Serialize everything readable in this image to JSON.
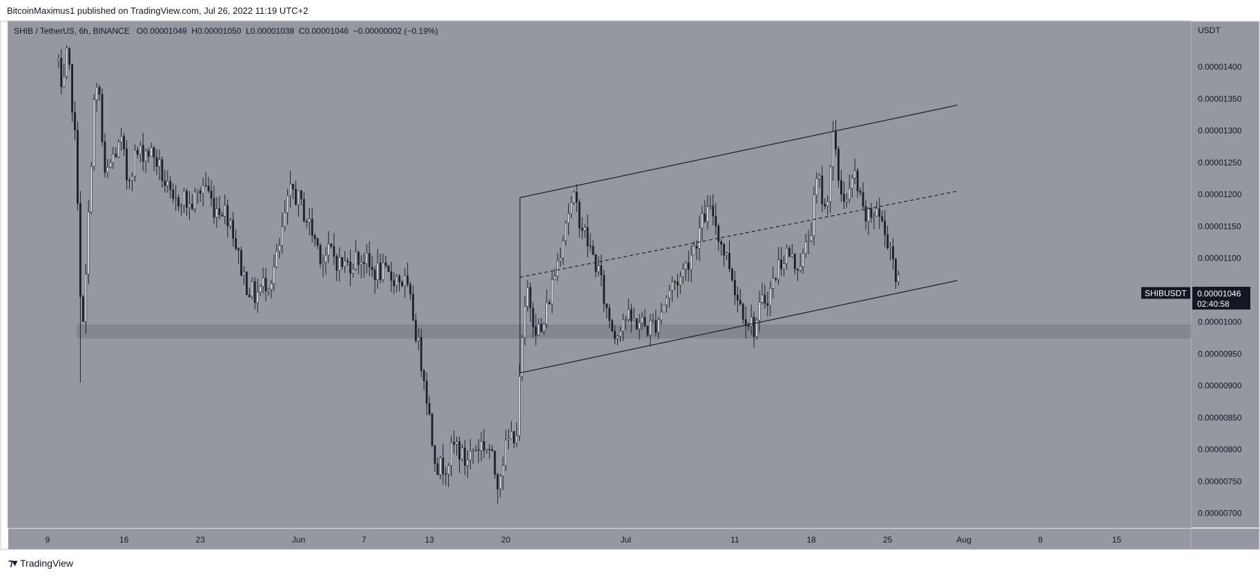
{
  "header": {
    "publisher": "BitcoinMaximus1 published on TradingView.com, Jul 26, 2022 11:19 UTC+2"
  },
  "legend": {
    "symbol": "SHIB / TetherUS, 6h, BINANCE",
    "o_label": "O",
    "o_value": "0.00001049",
    "h_label": "H",
    "h_value": "0.00001050",
    "l_label": "L",
    "l_value": "0.00001038",
    "c_label": "C",
    "c_value": "0.00001046",
    "change": "−0.00000002 (−0.19%)"
  },
  "price_tag": {
    "symbol": "SHIBUSDT",
    "price": "0.00001046",
    "countdown": "02:40:58"
  },
  "brand": {
    "name": "TradingView"
  },
  "colors": {
    "background": "#9598a1",
    "candle": "#1c1f26",
    "line": "#1c1f26",
    "support_zone": "#7b7e86",
    "tag": "#131722"
  },
  "chart_data": {
    "type": "candlestick",
    "currency_label": "USDT",
    "y_ticks": [
      "0.00001400",
      "0.00001350",
      "0.00001300",
      "0.00001250",
      "0.00001200",
      "0.00001150",
      "0.00001100",
      "0.00001050",
      "0.00001000",
      "0.00000950",
      "0.00000900",
      "0.00000850",
      "0.00000800",
      "0.00000750",
      "0.00000700"
    ],
    "y_tick_values": [
      14.0,
      13.5,
      13.0,
      12.5,
      12.0,
      11.5,
      11.0,
      10.5,
      10.0,
      9.5,
      9.0,
      8.5,
      8.0,
      7.5,
      7.0
    ],
    "y_unit_scale": "1e-6",
    "x_ticks": [
      {
        "label": "9",
        "day": 0
      },
      {
        "label": "16",
        "day": 7
      },
      {
        "label": "23",
        "day": 14
      },
      {
        "label": "Jun",
        "day": 23
      },
      {
        "label": "7",
        "day": 29
      },
      {
        "label": "13",
        "day": 35
      },
      {
        "label": "20",
        "day": 42
      },
      {
        "label": "Jul",
        "day": 53
      },
      {
        "label": "11",
        "day": 63
      },
      {
        "label": "18",
        "day": 70
      },
      {
        "label": "25",
        "day": 77
      },
      {
        "label": "Aug",
        "day": 84
      },
      {
        "label": "8",
        "day": 91
      },
      {
        "label": "15",
        "day": 98
      }
    ],
    "price_path_day_close": [
      [
        1.0,
        14.1
      ],
      [
        1.3,
        13.4
      ],
      [
        1.8,
        14.2
      ],
      [
        2.4,
        13.2
      ],
      [
        2.9,
        11.5
      ],
      [
        3.1,
        9.5
      ],
      [
        3.4,
        10.3
      ],
      [
        3.8,
        11.8
      ],
      [
        4.2,
        13.4
      ],
      [
        4.7,
        13.7
      ],
      [
        5.2,
        12.2
      ],
      [
        6.0,
        12.6
      ],
      [
        6.8,
        12.8
      ],
      [
        7.3,
        12.2
      ],
      [
        8.0,
        12.6
      ],
      [
        9.0,
        12.7
      ],
      [
        9.8,
        12.6
      ],
      [
        10.5,
        12.3
      ],
      [
        11.5,
        11.8
      ],
      [
        12.3,
        12.0
      ],
      [
        13.0,
        11.8
      ],
      [
        13.8,
        12.0
      ],
      [
        14.4,
        12.2
      ],
      [
        15.2,
        11.8
      ],
      [
        16.0,
        11.8
      ],
      [
        16.8,
        11.6
      ],
      [
        17.5,
        11.0
      ],
      [
        18.2,
        10.6
      ],
      [
        19.0,
        10.4
      ],
      [
        19.8,
        10.6
      ],
      [
        20.5,
        10.7
      ],
      [
        21.2,
        11.1
      ],
      [
        21.8,
        11.7
      ],
      [
        22.4,
        12.1
      ],
      [
        23.0,
        11.9
      ],
      [
        23.8,
        11.6
      ],
      [
        24.5,
        11.3
      ],
      [
        25.2,
        11.0
      ],
      [
        26.0,
        11.1
      ],
      [
        26.8,
        10.9
      ],
      [
        27.5,
        10.9
      ],
      [
        28.2,
        11.0
      ],
      [
        29.0,
        11.0
      ],
      [
        29.6,
        10.8
      ],
      [
        30.4,
        10.8
      ],
      [
        31.2,
        10.7
      ],
      [
        32.0,
        10.7
      ],
      [
        32.8,
        10.6
      ],
      [
        33.5,
        10.1
      ],
      [
        34.0,
        9.6
      ],
      [
        34.6,
        9.1
      ],
      [
        35.2,
        8.2
      ],
      [
        35.8,
        7.7
      ],
      [
        36.6,
        7.8
      ],
      [
        37.4,
        8.1
      ],
      [
        38.2,
        7.8
      ],
      [
        39.0,
        8.0
      ],
      [
        39.8,
        8.1
      ],
      [
        40.5,
        8.0
      ],
      [
        41.2,
        7.5
      ],
      [
        41.8,
        7.9
      ],
      [
        42.4,
        8.2
      ],
      [
        43.0,
        8.3
      ],
      [
        43.5,
        9.7
      ],
      [
        44.0,
        10.5
      ],
      [
        44.6,
        10.0
      ],
      [
        45.3,
        9.8
      ],
      [
        46.0,
        10.4
      ],
      [
        46.8,
        11.0
      ],
      [
        47.6,
        11.7
      ],
      [
        48.3,
        11.9
      ],
      [
        49.0,
        11.5
      ],
      [
        49.8,
        11.1
      ],
      [
        50.5,
        10.8
      ],
      [
        51.2,
        10.2
      ],
      [
        52.0,
        9.8
      ],
      [
        52.8,
        10.1
      ],
      [
        53.5,
        10.0
      ],
      [
        54.3,
        10.0
      ],
      [
        55.0,
        9.9
      ],
      [
        55.8,
        10.0
      ],
      [
        56.5,
        10.3
      ],
      [
        57.3,
        10.6
      ],
      [
        58.0,
        10.7
      ],
      [
        58.8,
        11.0
      ],
      [
        59.5,
        11.3
      ],
      [
        60.3,
        11.7
      ],
      [
        61.0,
        11.7
      ],
      [
        61.8,
        11.2
      ],
      [
        62.5,
        10.9
      ],
      [
        63.2,
        10.4
      ],
      [
        64.0,
        10.1
      ],
      [
        64.8,
        9.9
      ],
      [
        65.5,
        10.3
      ],
      [
        66.3,
        10.5
      ],
      [
        67.0,
        10.9
      ],
      [
        67.8,
        11.1
      ],
      [
        68.5,
        10.9
      ],
      [
        69.3,
        11.0
      ],
      [
        70.0,
        11.5
      ],
      [
        70.6,
        12.3
      ],
      [
        71.3,
        11.7
      ],
      [
        72.0,
        12.9
      ],
      [
        72.6,
        12.1
      ],
      [
        73.3,
        11.9
      ],
      [
        74.0,
        12.3
      ],
      [
        74.7,
        11.7
      ],
      [
        75.3,
        11.6
      ],
      [
        76.0,
        11.8
      ],
      [
        76.7,
        11.4
      ],
      [
        77.3,
        11.2
      ],
      [
        77.8,
        10.7
      ],
      [
        78.2,
        10.46
      ]
    ],
    "channel_upper": [
      [
        43.3,
        11.95
      ],
      [
        83.4,
        13.4
      ]
    ],
    "channel_mid": [
      [
        43.3,
        10.7
      ],
      [
        83.4,
        12.05
      ]
    ],
    "channel_lower": [
      [
        43.3,
        9.2
      ],
      [
        83.4,
        10.65
      ]
    ],
    "vertical_line": {
      "day": 43.3,
      "from": 9.2,
      "to": 11.95
    },
    "support_zone": [
      9.75,
      9.95
    ],
    "last_price": 10.46
  }
}
